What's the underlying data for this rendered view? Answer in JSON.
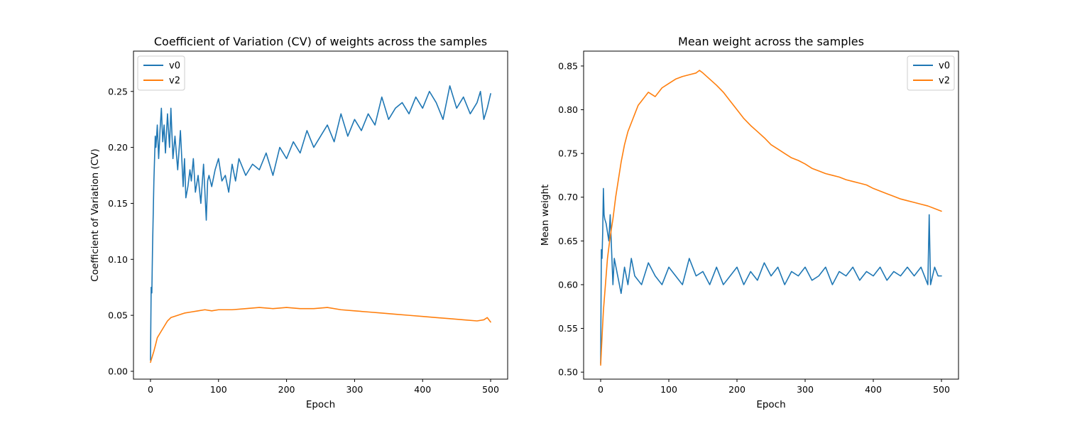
{
  "chart_data": [
    {
      "type": "line",
      "title": "Coefficient of Variation (CV) of weights across the samples",
      "xlabel": "Epoch",
      "ylabel": "Coefficient of Variation (CV)",
      "xlim": [
        -25,
        525
      ],
      "ylim": [
        -0.007,
        0.286
      ],
      "xticks": [
        0,
        100,
        200,
        300,
        400,
        500
      ],
      "xtick_labels": [
        "0",
        "100",
        "200",
        "300",
        "400",
        "500"
      ],
      "yticks": [
        0.0,
        0.05,
        0.1,
        0.15,
        0.2,
        0.25
      ],
      "ytick_labels": [
        "0.00",
        "0.05",
        "0.10",
        "0.15",
        "0.20",
        "0.25"
      ],
      "legend_position": "top-left",
      "series": [
        {
          "name": "v0",
          "color": "#1f77b4",
          "x": [
            0,
            1,
            2,
            3,
            4,
            5,
            6,
            7,
            8,
            10,
            12,
            14,
            16,
            18,
            20,
            22,
            25,
            28,
            30,
            33,
            36,
            40,
            44,
            48,
            50,
            52,
            55,
            58,
            60,
            63,
            66,
            70,
            74,
            78,
            82,
            84,
            86,
            90,
            95,
            100,
            105,
            110,
            115,
            120,
            125,
            130,
            140,
            150,
            160,
            170,
            180,
            190,
            200,
            210,
            220,
            230,
            240,
            250,
            260,
            270,
            280,
            290,
            300,
            310,
            320,
            330,
            340,
            350,
            360,
            370,
            380,
            390,
            400,
            410,
            420,
            430,
            440,
            450,
            460,
            470,
            480,
            485,
            490,
            495,
            500
          ],
          "values": [
            0.01,
            0.075,
            0.07,
            0.11,
            0.14,
            0.17,
            0.19,
            0.21,
            0.2,
            0.22,
            0.19,
            0.215,
            0.235,
            0.205,
            0.22,
            0.195,
            0.23,
            0.2,
            0.235,
            0.19,
            0.21,
            0.18,
            0.215,
            0.165,
            0.19,
            0.155,
            0.165,
            0.18,
            0.17,
            0.19,
            0.16,
            0.175,
            0.15,
            0.185,
            0.135,
            0.17,
            0.175,
            0.165,
            0.18,
            0.19,
            0.17,
            0.175,
            0.16,
            0.185,
            0.17,
            0.19,
            0.175,
            0.185,
            0.18,
            0.195,
            0.175,
            0.2,
            0.19,
            0.205,
            0.195,
            0.215,
            0.2,
            0.21,
            0.22,
            0.205,
            0.23,
            0.21,
            0.225,
            0.215,
            0.23,
            0.22,
            0.245,
            0.225,
            0.235,
            0.24,
            0.23,
            0.245,
            0.235,
            0.25,
            0.24,
            0.225,
            0.255,
            0.235,
            0.245,
            0.23,
            0.24,
            0.25,
            0.225,
            0.235,
            0.248
          ]
        },
        {
          "name": "v2",
          "color": "#ff7f0e",
          "x": [
            0,
            2,
            5,
            8,
            10,
            15,
            20,
            25,
            30,
            40,
            50,
            60,
            70,
            80,
            90,
            100,
            120,
            140,
            160,
            180,
            200,
            220,
            240,
            260,
            280,
            300,
            320,
            340,
            360,
            380,
            400,
            420,
            440,
            460,
            480,
            490,
            495,
            500
          ],
          "values": [
            0.008,
            0.012,
            0.018,
            0.025,
            0.03,
            0.035,
            0.04,
            0.045,
            0.048,
            0.05,
            0.052,
            0.053,
            0.054,
            0.055,
            0.054,
            0.055,
            0.055,
            0.056,
            0.057,
            0.056,
            0.057,
            0.056,
            0.056,
            0.057,
            0.055,
            0.054,
            0.053,
            0.052,
            0.051,
            0.05,
            0.049,
            0.048,
            0.047,
            0.046,
            0.045,
            0.046,
            0.048,
            0.044
          ]
        }
      ]
    },
    {
      "type": "line",
      "title": "Mean weight across the samples",
      "xlabel": "Epoch",
      "ylabel": "Mean weight",
      "xlim": [
        -25,
        525
      ],
      "ylim": [
        0.492,
        0.867
      ],
      "xticks": [
        0,
        100,
        200,
        300,
        400,
        500
      ],
      "xtick_labels": [
        "0",
        "100",
        "200",
        "300",
        "400",
        "500"
      ],
      "yticks": [
        0.5,
        0.55,
        0.6,
        0.65,
        0.7,
        0.75,
        0.8,
        0.85
      ],
      "ytick_labels": [
        "0.50",
        "0.55",
        "0.60",
        "0.65",
        "0.70",
        "0.75",
        "0.80",
        "0.85"
      ],
      "legend_position": "top-right",
      "series": [
        {
          "name": "v0",
          "color": "#1f77b4",
          "x": [
            0,
            1,
            2,
            3,
            4,
            5,
            6,
            8,
            10,
            12,
            14,
            16,
            18,
            20,
            25,
            30,
            35,
            40,
            45,
            50,
            60,
            70,
            80,
            90,
            100,
            110,
            120,
            130,
            140,
            150,
            160,
            170,
            180,
            190,
            200,
            210,
            220,
            230,
            240,
            250,
            260,
            270,
            280,
            290,
            300,
            310,
            320,
            330,
            340,
            350,
            360,
            370,
            380,
            390,
            400,
            410,
            420,
            430,
            440,
            450,
            460,
            470,
            480,
            482,
            484,
            490,
            495,
            500
          ],
          "values": [
            0.51,
            0.64,
            0.63,
            0.66,
            0.71,
            0.68,
            0.675,
            0.67,
            0.66,
            0.65,
            0.68,
            0.64,
            0.6,
            0.63,
            0.61,
            0.59,
            0.62,
            0.6,
            0.63,
            0.61,
            0.6,
            0.625,
            0.61,
            0.6,
            0.62,
            0.61,
            0.6,
            0.63,
            0.61,
            0.615,
            0.6,
            0.62,
            0.6,
            0.61,
            0.62,
            0.6,
            0.615,
            0.605,
            0.625,
            0.61,
            0.62,
            0.6,
            0.615,
            0.61,
            0.62,
            0.605,
            0.61,
            0.62,
            0.6,
            0.615,
            0.61,
            0.62,
            0.605,
            0.615,
            0.61,
            0.62,
            0.605,
            0.615,
            0.61,
            0.62,
            0.61,
            0.62,
            0.6,
            0.68,
            0.6,
            0.62,
            0.61,
            0.61
          ]
        },
        {
          "name": "v2",
          "color": "#ff7f0e",
          "x": [
            0,
            2,
            4,
            6,
            8,
            10,
            14,
            18,
            22,
            26,
            30,
            35,
            40,
            45,
            50,
            55,
            60,
            65,
            70,
            80,
            90,
            100,
            110,
            120,
            130,
            140,
            145,
            150,
            160,
            170,
            180,
            190,
            200,
            210,
            220,
            230,
            240,
            250,
            260,
            270,
            280,
            290,
            300,
            310,
            320,
            330,
            340,
            350,
            360,
            370,
            380,
            390,
            400,
            410,
            420,
            430,
            440,
            450,
            460,
            470,
            480,
            490,
            500
          ],
          "values": [
            0.508,
            0.54,
            0.57,
            0.59,
            0.61,
            0.63,
            0.655,
            0.675,
            0.7,
            0.72,
            0.74,
            0.76,
            0.775,
            0.785,
            0.795,
            0.805,
            0.81,
            0.815,
            0.82,
            0.815,
            0.825,
            0.83,
            0.835,
            0.838,
            0.84,
            0.842,
            0.845,
            0.842,
            0.835,
            0.828,
            0.82,
            0.81,
            0.8,
            0.79,
            0.782,
            0.775,
            0.768,
            0.76,
            0.755,
            0.75,
            0.745,
            0.742,
            0.738,
            0.733,
            0.73,
            0.727,
            0.725,
            0.723,
            0.72,
            0.718,
            0.716,
            0.714,
            0.71,
            0.707,
            0.704,
            0.701,
            0.698,
            0.696,
            0.694,
            0.692,
            0.69,
            0.687,
            0.684
          ]
        }
      ]
    }
  ]
}
